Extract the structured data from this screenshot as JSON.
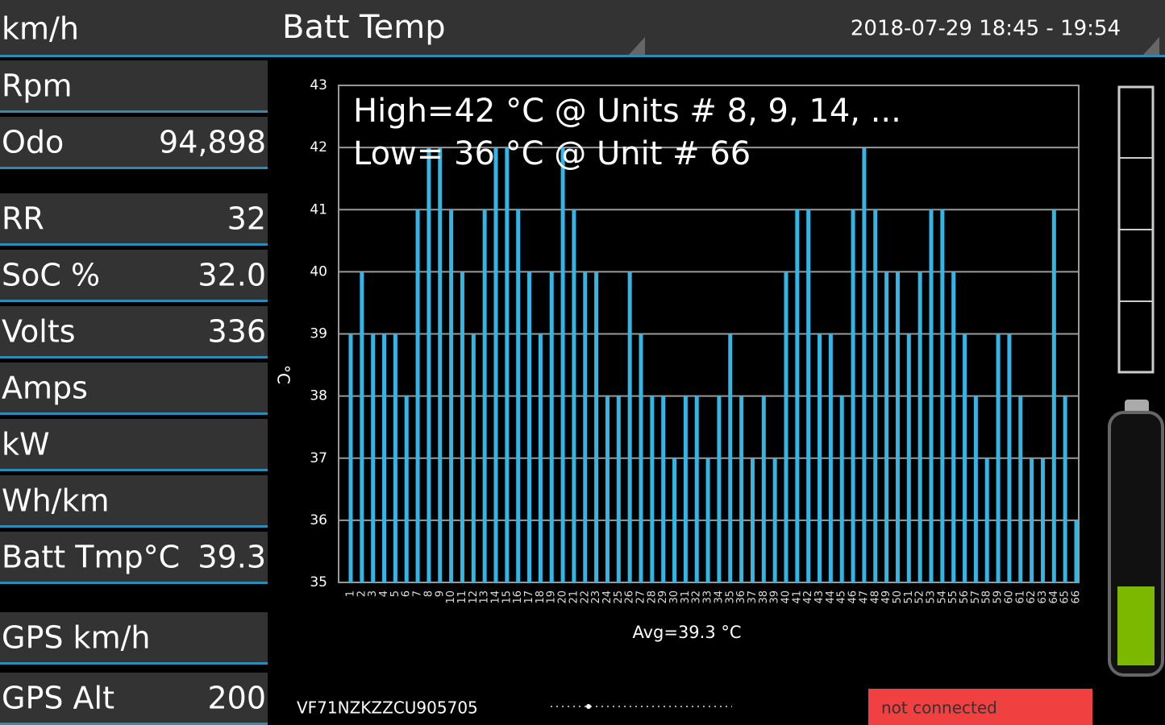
{
  "header": {
    "speed_label": "km/h",
    "title": "Batt Temp",
    "time_range": "2018-07-29 18:45 - 19:54"
  },
  "sidebar": [
    {
      "label": "Rpm"
    },
    {
      "label": "Odo",
      "value": "94,898"
    },
    {
      "label": "RR",
      "value": "32"
    },
    {
      "label": "SoC %",
      "value": "32.0"
    },
    {
      "label": "Volts",
      "value": "336"
    },
    {
      "label": "Amps"
    },
    {
      "label": "kW"
    },
    {
      "label": "Wh/km"
    },
    {
      "label": "Batt Tmp°C",
      "value": "39.3"
    },
    {
      "label": "GPS km/h"
    },
    {
      "label": "GPS Alt",
      "value": "200"
    }
  ],
  "chart_data": {
    "type": "bar",
    "annotations": [
      "High=42 °C @ Units # 8, 9, 14,  ...",
      "Low= 36 °C @ Unit # 66"
    ],
    "y_label": "°C",
    "x_label": "Avg=39.3 °C",
    "categories": [
      "1",
      "2",
      "3",
      "4",
      "5",
      "6",
      "7",
      "8",
      "9",
      "10",
      "11",
      "12",
      "13",
      "14",
      "15",
      "16",
      "17",
      "18",
      "19",
      "20",
      "21",
      "22",
      "23",
      "24",
      "25",
      "26",
      "27",
      "28",
      "29",
      "30",
      "31",
      "32",
      "33",
      "34",
      "35",
      "36",
      "37",
      "38",
      "39",
      "40",
      "41",
      "42",
      "43",
      "44",
      "45",
      "46",
      "47",
      "48",
      "49",
      "50",
      "51",
      "52",
      "53",
      "54",
      "55",
      "56",
      "57",
      "58",
      "59",
      "60",
      "61",
      "62",
      "63",
      "64",
      "65",
      "66"
    ],
    "values": [
      39,
      40,
      39,
      39,
      39,
      38,
      41,
      42,
      42,
      41,
      40,
      39,
      41,
      42,
      42,
      41,
      40,
      39,
      40,
      42,
      41,
      40,
      40,
      38,
      38,
      40,
      39,
      38,
      38,
      37,
      38,
      38,
      37,
      38,
      39,
      38,
      37,
      38,
      37,
      40,
      41,
      41,
      39,
      39,
      38,
      41,
      42,
      41,
      40,
      40,
      39,
      40,
      41,
      41,
      40,
      39,
      38,
      37,
      39,
      39,
      38,
      37,
      37,
      41,
      38,
      36
    ],
    "color": "#33b5e5",
    "ylim": [
      35,
      43
    ],
    "yticks": [
      35,
      36,
      37,
      38,
      39,
      40,
      41,
      42,
      43
    ],
    "grid": true
  },
  "footer": {
    "vin": "VF71NZKZZCU905705",
    "status": "not connected"
  }
}
